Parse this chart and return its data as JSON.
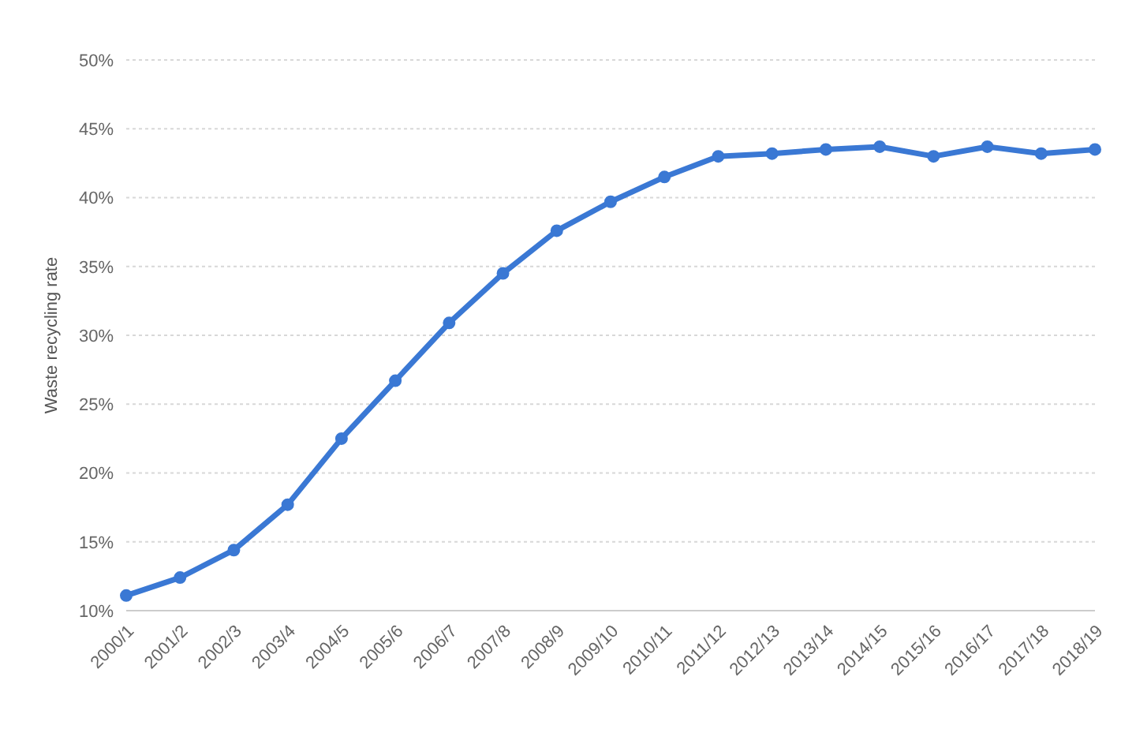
{
  "chart_data": {
    "type": "line",
    "ylabel": "Waste recycling rate",
    "categories": [
      "2000/1",
      "2001/2",
      "2002/3",
      "2003/4",
      "2004/5",
      "2005/6",
      "2006/7",
      "2007/8",
      "2008/9",
      "2009/10",
      "2010/11",
      "2011/12",
      "2012/13",
      "2013/14",
      "2014/15",
      "2015/16",
      "2016/17",
      "2017/18",
      "2018/19"
    ],
    "series": [
      {
        "color": "#3a78d4",
        "values": [
          11.1,
          12.4,
          14.4,
          17.7,
          22.5,
          26.7,
          30.9,
          34.5,
          37.6,
          39.7,
          41.5,
          43.0,
          43.2,
          43.5,
          43.7,
          43.0,
          43.7,
          43.2,
          43.5
        ]
      }
    ],
    "ylim": [
      10,
      50
    ],
    "yticks": [
      {
        "value": 10,
        "label": "10%"
      },
      {
        "value": 15,
        "label": "15%"
      },
      {
        "value": 20,
        "label": "20%"
      },
      {
        "value": 25,
        "label": "25%"
      },
      {
        "value": 30,
        "label": "30%"
      },
      {
        "value": 35,
        "label": "35%"
      },
      {
        "value": 40,
        "label": "40%"
      },
      {
        "value": 45,
        "label": "45%"
      },
      {
        "value": 50,
        "label": "50%"
      }
    ],
    "grid": "y",
    "marker": "circle",
    "line_style": "solid"
  }
}
